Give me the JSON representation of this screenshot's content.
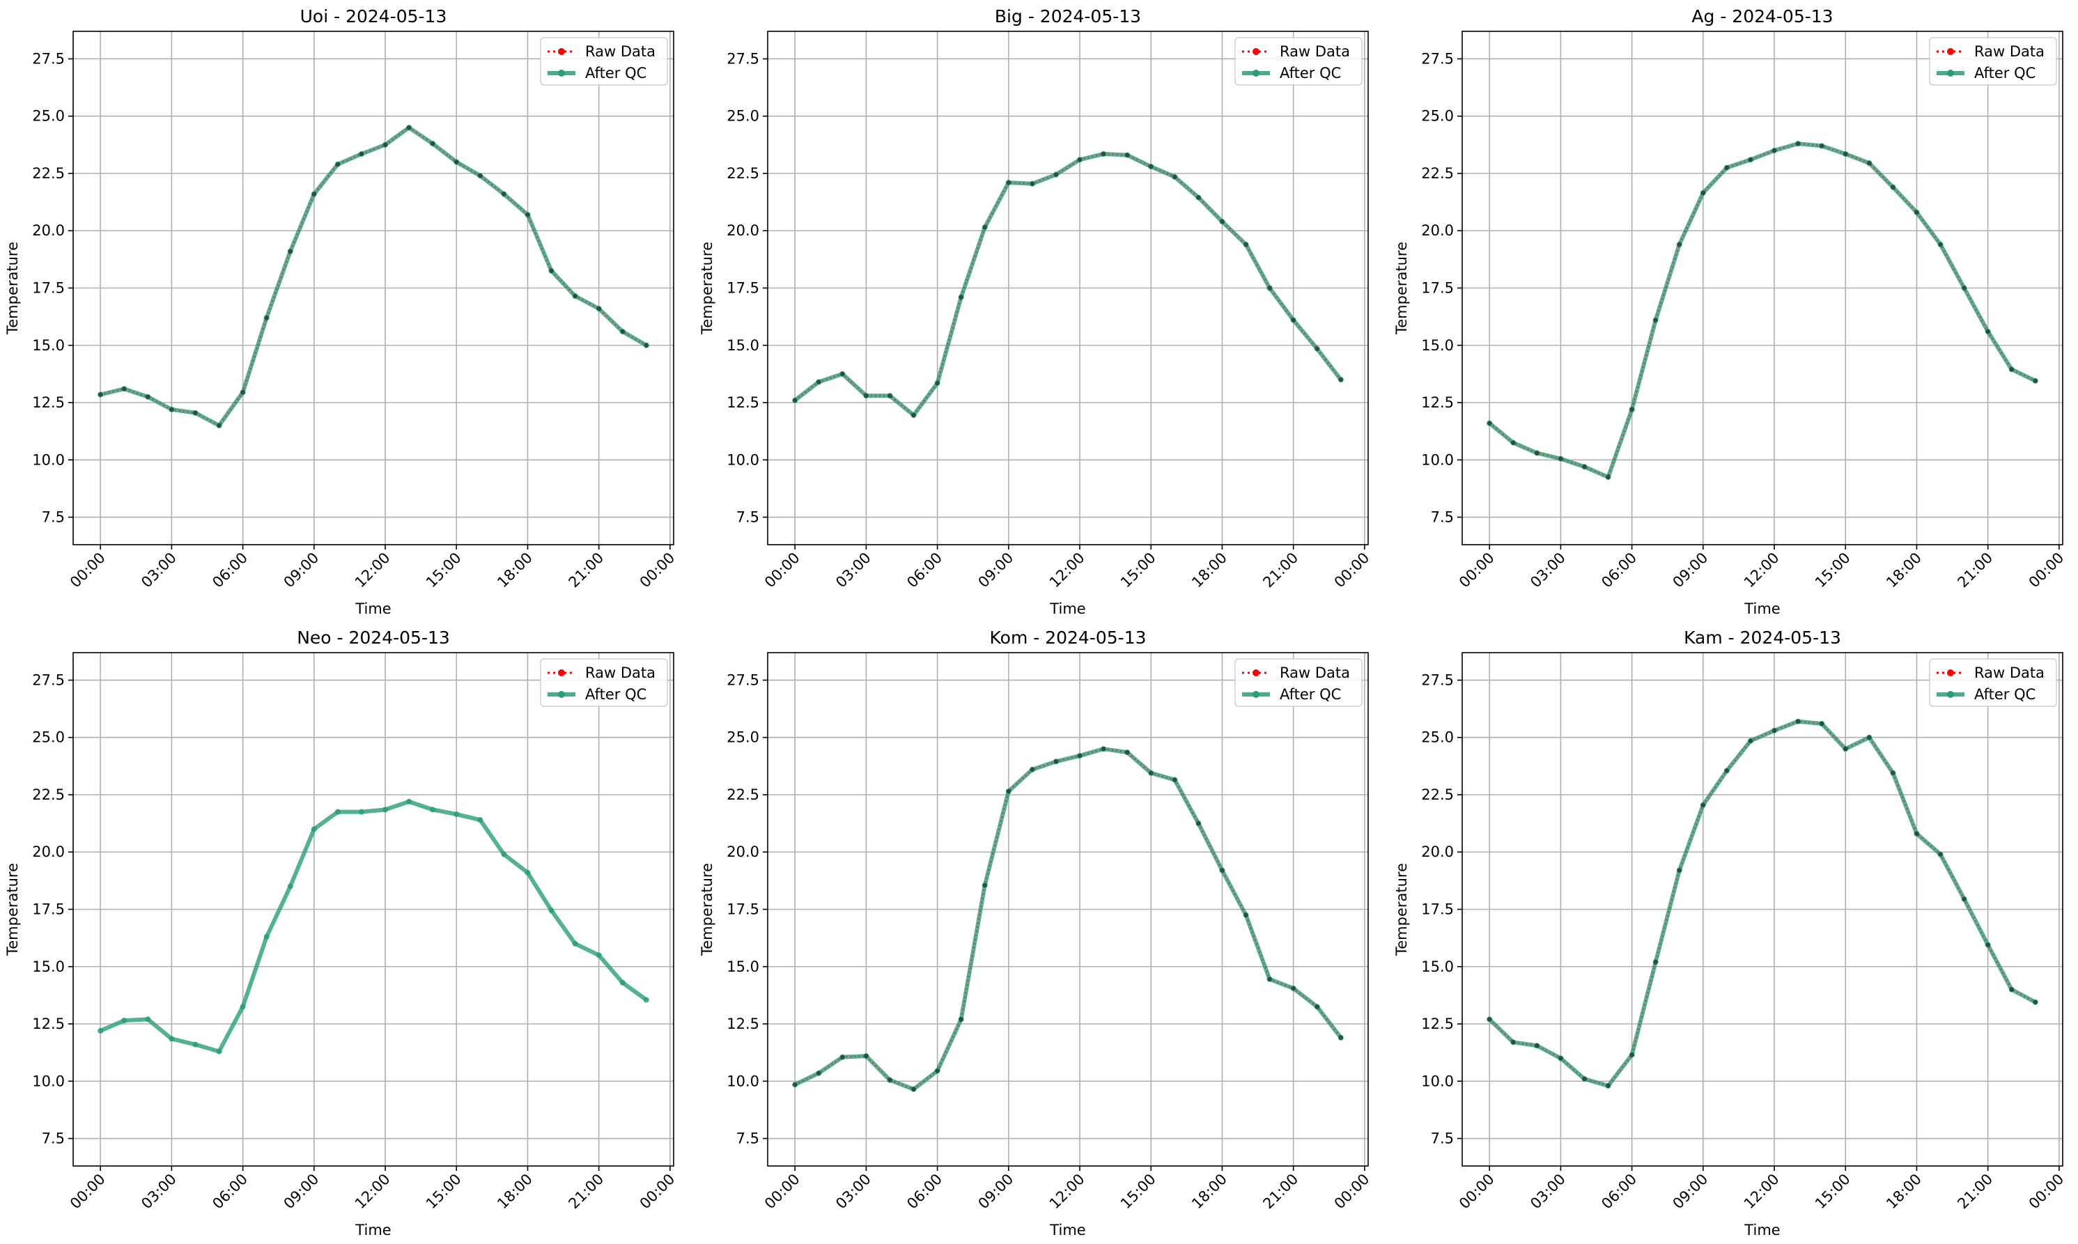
{
  "figure": {
    "panels": [
      {
        "title": "Uoi - 2024-05-13",
        "xlabel": "Time",
        "ylabel": "Temperature",
        "chart_index": 0
      },
      {
        "title": "Big - 2024-05-13",
        "xlabel": "Time",
        "ylabel": "Temperature",
        "chart_index": 1
      },
      {
        "title": "Ag - 2024-05-13",
        "xlabel": "Time",
        "ylabel": "Temperature",
        "chart_index": 2
      },
      {
        "title": "Neo - 2024-05-13",
        "xlabel": "Time",
        "ylabel": "Temperature",
        "chart_index": 3
      },
      {
        "title": "Kom - 2024-05-13",
        "xlabel": "Time",
        "ylabel": "Temperature",
        "chart_index": 4
      },
      {
        "title": "Kam - 2024-05-13",
        "xlabel": "Time",
        "ylabel": "Temperature",
        "chart_index": 5
      }
    ]
  },
  "chart_data": [
    {
      "type": "line",
      "title": "Uoi - 2024-05-13",
      "xlabel": "Time",
      "ylabel": "Temperature",
      "x": [
        "00:00",
        "01:00",
        "02:00",
        "03:00",
        "04:00",
        "05:00",
        "06:00",
        "07:00",
        "08:00",
        "09:00",
        "10:00",
        "11:00",
        "12:00",
        "13:00",
        "14:00",
        "15:00",
        "16:00",
        "17:00",
        "18:00",
        "19:00",
        "20:00",
        "21:00",
        "22:00",
        "23:00"
      ],
      "xticks": [
        "00:00",
        "03:00",
        "06:00",
        "09:00",
        "12:00",
        "15:00",
        "18:00",
        "21:00",
        "00:00"
      ],
      "ylim": [
        6.3,
        28.7
      ],
      "yticks": [
        7.5,
        10.0,
        12.5,
        15.0,
        17.5,
        20.0,
        22.5,
        25.0,
        27.5
      ],
      "grid": true,
      "legend_position": "top-right",
      "series": [
        {
          "name": "Raw Data",
          "color": "#ff0000",
          "style": "dotted",
          "values": [
            12.85,
            13.1,
            12.75,
            12.2,
            12.05,
            11.5,
            12.95,
            16.2,
            19.1,
            21.6,
            22.9,
            23.35,
            23.75,
            24.5,
            23.8,
            23.0,
            22.4,
            21.6,
            20.7,
            18.25,
            17.15,
            16.6,
            15.6,
            15.0
          ]
        },
        {
          "name": "After QC",
          "color": "#2a9d78",
          "style": "solid",
          "values": [
            12.85,
            13.1,
            12.75,
            12.2,
            12.05,
            11.5,
            12.95,
            16.2,
            19.1,
            21.6,
            22.9,
            23.35,
            23.75,
            24.5,
            23.8,
            23.0,
            22.4,
            21.6,
            20.7,
            18.25,
            17.15,
            16.6,
            15.6,
            15.0
          ]
        }
      ]
    },
    {
      "type": "line",
      "title": "Big - 2024-05-13",
      "xlabel": "Time",
      "ylabel": "Temperature",
      "x": [
        "00:00",
        "01:00",
        "02:00",
        "03:00",
        "04:00",
        "05:00",
        "06:00",
        "07:00",
        "08:00",
        "09:00",
        "10:00",
        "11:00",
        "12:00",
        "13:00",
        "14:00",
        "15:00",
        "16:00",
        "17:00",
        "18:00",
        "19:00",
        "20:00",
        "21:00",
        "22:00",
        "23:00"
      ],
      "xticks": [
        "00:00",
        "03:00",
        "06:00",
        "09:00",
        "12:00",
        "15:00",
        "18:00",
        "21:00",
        "00:00"
      ],
      "ylim": [
        6.3,
        28.7
      ],
      "yticks": [
        7.5,
        10.0,
        12.5,
        15.0,
        17.5,
        20.0,
        22.5,
        25.0,
        27.5
      ],
      "grid": true,
      "legend_position": "top-right",
      "series": [
        {
          "name": "Raw Data",
          "color": "#ff0000",
          "style": "dotted",
          "values": [
            12.6,
            13.4,
            13.75,
            12.8,
            12.8,
            11.95,
            13.35,
            17.1,
            20.15,
            22.1,
            22.05,
            22.45,
            23.1,
            23.35,
            23.3,
            22.8,
            22.35,
            21.45,
            20.4,
            19.4,
            17.5,
            16.1,
            14.85,
            13.5
          ]
        },
        {
          "name": "After QC",
          "color": "#2a9d78",
          "style": "solid",
          "values": [
            12.6,
            13.4,
            13.75,
            12.8,
            12.8,
            11.95,
            13.35,
            17.1,
            20.15,
            22.1,
            22.05,
            22.45,
            23.1,
            23.35,
            23.3,
            22.8,
            22.35,
            21.45,
            20.4,
            19.4,
            17.5,
            16.1,
            14.85,
            13.5
          ]
        }
      ]
    },
    {
      "type": "line",
      "title": "Ag - 2024-05-13",
      "xlabel": "Time",
      "ylabel": "Temperature",
      "x": [
        "00:00",
        "01:00",
        "02:00",
        "03:00",
        "04:00",
        "05:00",
        "06:00",
        "07:00",
        "08:00",
        "09:00",
        "10:00",
        "11:00",
        "12:00",
        "13:00",
        "14:00",
        "15:00",
        "16:00",
        "17:00",
        "18:00",
        "19:00",
        "20:00",
        "21:00",
        "22:00",
        "23:00"
      ],
      "xticks": [
        "00:00",
        "03:00",
        "06:00",
        "09:00",
        "12:00",
        "15:00",
        "18:00",
        "21:00",
        "00:00"
      ],
      "ylim": [
        6.3,
        28.7
      ],
      "yticks": [
        7.5,
        10.0,
        12.5,
        15.0,
        17.5,
        20.0,
        22.5,
        25.0,
        27.5
      ],
      "grid": true,
      "legend_position": "top-right",
      "series": [
        {
          "name": "Raw Data",
          "color": "#ff0000",
          "style": "dotted",
          "values": [
            11.6,
            10.75,
            10.3,
            10.05,
            9.7,
            9.25,
            12.2,
            16.1,
            19.4,
            21.65,
            22.75,
            23.1,
            23.5,
            23.8,
            23.7,
            23.35,
            22.95,
            21.9,
            20.8,
            19.4,
            17.5,
            15.6,
            13.95,
            13.45
          ]
        },
        {
          "name": "After QC",
          "color": "#2a9d78",
          "style": "solid",
          "values": [
            11.6,
            10.75,
            10.3,
            10.05,
            9.7,
            9.25,
            12.2,
            16.1,
            19.4,
            21.65,
            22.75,
            23.1,
            23.5,
            23.8,
            23.7,
            23.35,
            22.95,
            21.9,
            20.8,
            19.4,
            17.5,
            15.6,
            13.95,
            13.45
          ]
        }
      ]
    },
    {
      "type": "line",
      "title": "Neo - 2024-05-13",
      "xlabel": "Time",
      "ylabel": "Temperature",
      "x": [
        "00:00",
        "01:00",
        "02:00",
        "03:00",
        "04:00",
        "05:00",
        "06:00",
        "07:00",
        "08:00",
        "09:00",
        "10:00",
        "11:00",
        "12:00",
        "13:00",
        "14:00",
        "15:00",
        "16:00",
        "17:00",
        "18:00",
        "19:00",
        "20:00",
        "21:00",
        "22:00",
        "23:00"
      ],
      "xticks": [
        "00:00",
        "03:00",
        "06:00",
        "09:00",
        "12:00",
        "15:00",
        "18:00",
        "21:00",
        "00:00"
      ],
      "ylim": [
        6.3,
        28.7
      ],
      "yticks": [
        7.5,
        10.0,
        12.5,
        15.0,
        17.5,
        20.0,
        22.5,
        25.0,
        27.5
      ],
      "grid": true,
      "legend_position": "top-right",
      "series": [
        {
          "name": "Raw Data",
          "color": "#ff0000",
          "style": "dotted",
          "values": [
            12.2,
            12.65,
            12.7,
            11.85,
            11.6,
            11.3,
            13.25,
            16.3,
            18.5,
            21.0,
            21.75,
            21.75,
            21.85,
            22.2,
            21.85,
            21.65,
            21.4,
            19.9,
            19.1,
            17.45,
            16.0,
            15.5,
            14.3,
            13.55
          ]
        },
        {
          "name": "After QC",
          "color": "#2a9d78",
          "style": "solid",
          "values": [
            12.2,
            12.65,
            12.7,
            11.85,
            11.6,
            11.3,
            13.25,
            16.3,
            18.5,
            21.0,
            21.75,
            21.75,
            21.85,
            22.2,
            21.85,
            21.65,
            21.4,
            19.9,
            19.1,
            17.45,
            16.0,
            15.5,
            14.3,
            13.55
          ]
        }
      ]
    },
    {
      "type": "line",
      "title": "Kom - 2024-05-13",
      "xlabel": "Time",
      "ylabel": "Temperature",
      "x": [
        "00:00",
        "01:00",
        "02:00",
        "03:00",
        "04:00",
        "05:00",
        "06:00",
        "07:00",
        "08:00",
        "09:00",
        "10:00",
        "11:00",
        "12:00",
        "13:00",
        "14:00",
        "15:00",
        "16:00",
        "17:00",
        "18:00",
        "19:00",
        "20:00",
        "21:00",
        "22:00",
        "23:00"
      ],
      "xticks": [
        "00:00",
        "03:00",
        "06:00",
        "09:00",
        "12:00",
        "15:00",
        "18:00",
        "21:00",
        "00:00"
      ],
      "ylim": [
        6.3,
        28.7
      ],
      "yticks": [
        7.5,
        10.0,
        12.5,
        15.0,
        17.5,
        20.0,
        22.5,
        25.0,
        27.5
      ],
      "grid": true,
      "legend_position": "top-right",
      "series": [
        {
          "name": "Raw Data",
          "color": "#ff0000",
          "style": "dotted",
          "values": [
            9.85,
            10.35,
            11.05,
            11.1,
            10.05,
            9.65,
            10.45,
            12.7,
            18.55,
            22.65,
            23.6,
            23.95,
            24.2,
            24.5,
            24.35,
            23.45,
            23.15,
            21.25,
            19.2,
            17.25,
            14.45,
            14.05,
            13.25,
            11.9
          ]
        },
        {
          "name": "After QC",
          "color": "#2a9d78",
          "style": "solid",
          "values": [
            9.85,
            10.35,
            11.05,
            11.1,
            10.05,
            9.65,
            10.45,
            12.7,
            18.55,
            22.65,
            23.6,
            23.95,
            24.2,
            24.5,
            24.35,
            23.45,
            23.15,
            21.25,
            19.2,
            17.25,
            14.45,
            14.05,
            13.25,
            11.9
          ]
        }
      ]
    },
    {
      "type": "line",
      "title": "Kam - 2024-05-13",
      "xlabel": "Time",
      "ylabel": "Temperature",
      "x": [
        "00:00",
        "01:00",
        "02:00",
        "03:00",
        "04:00",
        "05:00",
        "06:00",
        "07:00",
        "08:00",
        "09:00",
        "10:00",
        "11:00",
        "12:00",
        "13:00",
        "14:00",
        "15:00",
        "16:00",
        "17:00",
        "18:00",
        "19:00",
        "20:00",
        "21:00",
        "22:00",
        "23:00"
      ],
      "xticks": [
        "00:00",
        "03:00",
        "06:00",
        "09:00",
        "12:00",
        "15:00",
        "18:00",
        "21:00",
        "00:00"
      ],
      "ylim": [
        6.3,
        28.7
      ],
      "yticks": [
        7.5,
        10.0,
        12.5,
        15.0,
        17.5,
        20.0,
        22.5,
        25.0,
        27.5
      ],
      "grid": true,
      "legend_position": "top-right",
      "series": [
        {
          "name": "Raw Data",
          "color": "#ff0000",
          "style": "dotted",
          "values": [
            12.7,
            11.7,
            11.55,
            11.0,
            10.1,
            9.8,
            11.15,
            15.2,
            19.2,
            22.05,
            23.55,
            24.85,
            25.3,
            25.7,
            25.6,
            24.5,
            25.0,
            23.45,
            20.8,
            19.9,
            17.95,
            15.95,
            14.0,
            13.45
          ]
        },
        {
          "name": "After QC",
          "color": "#2a9d78",
          "style": "solid",
          "values": [
            12.7,
            11.7,
            11.55,
            11.0,
            10.1,
            9.8,
            11.15,
            15.2,
            19.2,
            22.05,
            23.55,
            24.85,
            25.3,
            25.7,
            25.6,
            24.5,
            25.0,
            23.45,
            20.8,
            19.9,
            17.95,
            15.95,
            14.0,
            13.45
          ]
        }
      ]
    }
  ]
}
